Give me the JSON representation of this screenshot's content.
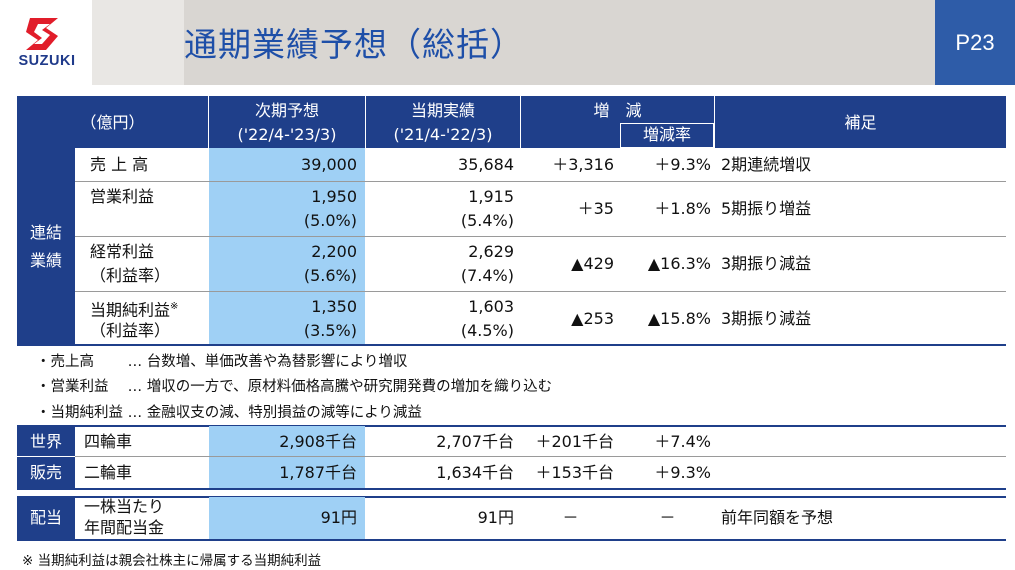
{
  "logo": {
    "text": "SUZUKI",
    "brand_color": "#1f3a8a"
  },
  "title": "通期業績予想（総括）",
  "page_number": "P23",
  "table": {
    "header": {
      "unit": "（億円）",
      "forecast": "次期予想",
      "forecast_period": "('22/4-'23/3)",
      "actual": "当期実績",
      "actual_period": "('21/4-'22/3)",
      "change": "増　減",
      "change_rate": "増減率",
      "remarks": "補足"
    },
    "consolidated_label": [
      "連結",
      "業績"
    ],
    "rows": [
      {
        "label": "売 上 高",
        "forecast": "39,000",
        "actual": "35,684",
        "change": "＋3,316",
        "rate": "＋9.3%",
        "remark": "2期連続増収"
      },
      {
        "label": "営業利益",
        "forecast": "1,950",
        "forecast_sub": "(5.0%)",
        "actual": "1,915",
        "actual_sub": "(5.4%)",
        "change": "＋35",
        "rate": "＋1.8%",
        "remark": "5期振り増益"
      },
      {
        "label": "経常利益",
        "label_sub": "（利益率）",
        "forecast": "2,200",
        "forecast_sub": "(5.6%)",
        "actual": "2,629",
        "actual_sub": "(7.4%)",
        "change": "▲429",
        "rate": "▲16.3%",
        "remark": "3期振り減益"
      },
      {
        "label": "当期純利益",
        "label_mark": "※",
        "label_sub": "（利益率）",
        "forecast": "1,350",
        "forecast_sub": "(3.5%)",
        "actual": "1,603",
        "actual_sub": "(4.5%)",
        "change": "▲253",
        "rate": "▲15.8%",
        "remark": "3期振り減益"
      }
    ],
    "notes": [
      "・売上高　　 … 台数増、単価改善や為替影響により増収",
      "・営業利益　 … 増収の一方で、原材料価格高騰や研究開発費の増加を織り込む",
      "・当期純利益 … 金融収支の減、特別損益の減等により減益"
    ],
    "global_sales_label": [
      "世界",
      "販売"
    ],
    "sales_rows": [
      {
        "label": "四輪車",
        "forecast": "2,908千台",
        "actual": "2,707千台",
        "change": "＋201千台",
        "rate": "＋7.4%"
      },
      {
        "label": "二輪車",
        "forecast": "1,787千台",
        "actual": "1,634千台",
        "change": "＋153千台",
        "rate": "＋9.3%"
      }
    ],
    "dividend": {
      "label": "配当",
      "item": [
        "一株当たり",
        "年間配当金"
      ],
      "forecast": "91円",
      "actual": "91円",
      "change": "－",
      "rate": "－",
      "remark": "前年同額を予想"
    }
  },
  "footnote": "※ 当期純利益は親会社株主に帰属する当期純利益",
  "colors": {
    "navy": "#1f3f8a",
    "light_blue": "#9fd0f5",
    "title_blue": "#1e4fa8",
    "page_blue": "#2e5ca8"
  }
}
